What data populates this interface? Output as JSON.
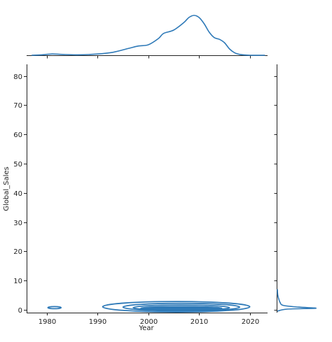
{
  "chart_data": {
    "type": "jointplot-kde",
    "xlabel": "Year",
    "ylabel": "Global_Sales",
    "xlim": [
      1976,
      2023.5
    ],
    "ylim": [
      -1,
      84
    ],
    "x_ticks": [
      1980,
      1990,
      2000,
      2010,
      2020
    ],
    "y_ticks": [
      0,
      10,
      20,
      30,
      40,
      50,
      60,
      70,
      80
    ],
    "color": "#2f7ab8",
    "marginal_x": {
      "x": [
        1977,
        1979,
        1981,
        1983,
        1986,
        1990,
        1993,
        1996,
        1998,
        2000,
        2002,
        2003,
        2005,
        2007,
        2008,
        2009,
        2010,
        2011,
        2012,
        2013,
        2014,
        2015,
        2016,
        2017,
        2018,
        2020,
        2023
      ],
      "density": [
        0.0,
        0.01,
        0.03,
        0.02,
        0.01,
        0.03,
        0.07,
        0.16,
        0.22,
        0.25,
        0.4,
        0.52,
        0.6,
        0.78,
        0.9,
        0.95,
        0.9,
        0.75,
        0.55,
        0.42,
        0.38,
        0.3,
        0.15,
        0.06,
        0.02,
        0.0,
        0.0
      ]
    },
    "marginal_y": {
      "y": [
        -0.5,
        0.2,
        0.5,
        0.9,
        1.5,
        2.5,
        3.5,
        5,
        7
      ],
      "density": [
        0.0,
        0.25,
        1.0,
        0.55,
        0.15,
        0.07,
        0.04,
        0.01,
        0.0
      ]
    },
    "contours": [
      {
        "cx": 1981.5,
        "cy": 0.7,
        "rx": 1.3,
        "ry": 0.3,
        "filled": false
      },
      {
        "cx": 2005.5,
        "cy": 1.0,
        "rx": 14.5,
        "ry": 1.8,
        "filled": false
      },
      {
        "cx": 2006.5,
        "cy": 0.9,
        "rx": 11.5,
        "ry": 1.3,
        "filled": false
      },
      {
        "cx": 2006.5,
        "cy": 0.7,
        "rx": 9.5,
        "ry": 0.9,
        "filled": false
      },
      {
        "cx": 2006.5,
        "cy": 0.55,
        "rx": 8.0,
        "ry": 0.55,
        "filled": true
      },
      {
        "cx": 2007,
        "cy": 0.45,
        "rx": 6.0,
        "ry": 0.3,
        "filled": true
      }
    ]
  }
}
